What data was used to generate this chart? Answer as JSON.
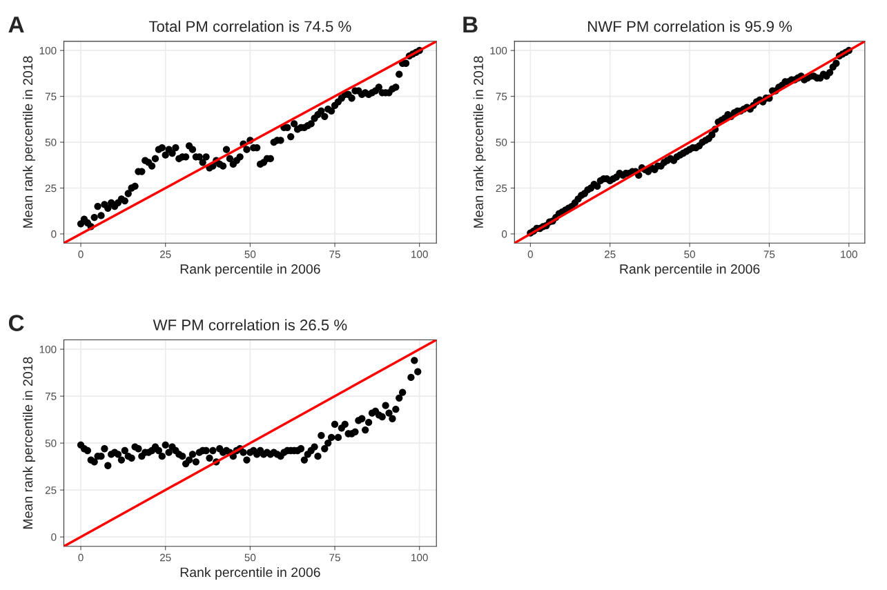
{
  "chart_data": [
    {
      "type": "scatter",
      "title": "Total PM correlation is 74.5 %",
      "xlabel": "Rank percentile in 2006",
      "ylabel": "Mean rank percentile in 2018",
      "annotations": [
        "A"
      ],
      "xlim": [
        -5,
        105
      ],
      "ylim": [
        -5,
        105
      ],
      "xticks": [
        0,
        25,
        50,
        75,
        100
      ],
      "yticks": [
        0,
        25,
        50,
        75,
        100
      ],
      "grid": true,
      "legend": false,
      "series": [
        {
          "marker": "circle",
          "color": "#000000",
          "x": [
            0,
            1,
            2,
            3,
            4,
            5,
            6,
            7,
            8,
            9,
            10,
            11,
            12,
            13,
            14,
            15,
            16,
            17,
            18,
            19,
            20,
            21,
            22,
            23,
            24,
            25,
            26,
            27,
            28,
            29,
            30,
            31,
            32,
            33,
            34,
            35,
            36,
            37,
            38,
            39,
            40,
            41,
            42,
            43,
            44,
            45,
            46,
            47,
            48,
            49,
            50,
            51,
            52,
            53,
            54,
            55,
            56,
            57,
            58,
            59,
            60,
            61,
            62,
            63,
            64,
            65,
            66,
            67,
            68,
            69,
            70,
            71,
            72,
            73,
            74,
            75,
            76,
            77,
            78,
            79,
            80,
            81,
            82,
            83,
            84,
            85,
            86,
            87,
            88,
            89,
            90,
            91,
            92,
            93,
            94,
            95,
            96,
            97,
            98,
            99,
            100
          ],
          "values": [
            5.5,
            8,
            6,
            4,
            9,
            15,
            10,
            16,
            14,
            17,
            15,
            17,
            19,
            18,
            22,
            25,
            26,
            34,
            34,
            40,
            39,
            37,
            41,
            46,
            47,
            43,
            46,
            44,
            47,
            41,
            42,
            42,
            48,
            46,
            42,
            42,
            39,
            42,
            36,
            37,
            40,
            38,
            37,
            46,
            41,
            38,
            40,
            42,
            49,
            46,
            51,
            47,
            47,
            38,
            39,
            41,
            41,
            50,
            51,
            51,
            58,
            58,
            53,
            60,
            57,
            58,
            58,
            59,
            60,
            63,
            65,
            67,
            64,
            68,
            67,
            70,
            72,
            74,
            76,
            76,
            74,
            78,
            78,
            76,
            77,
            76,
            77,
            78,
            80,
            77,
            77,
            77,
            79,
            80,
            87,
            93,
            93,
            97,
            98,
            99,
            100
          ]
        },
        {
          "type": "line",
          "color": "#ff0000",
          "x": [
            -5,
            105
          ],
          "values": [
            -5,
            105
          ]
        }
      ]
    },
    {
      "type": "scatter",
      "title": "NWF PM correlation is 95.9 %",
      "xlabel": "Rank percentile in 2006",
      "ylabel": "Mean rank percentile in 2018",
      "annotations": [
        "B"
      ],
      "xlim": [
        -5,
        105
      ],
      "ylim": [
        -5,
        105
      ],
      "xticks": [
        0,
        25,
        50,
        75,
        100
      ],
      "yticks": [
        0,
        25,
        50,
        75,
        100
      ],
      "grid": true,
      "legend": false,
      "series": [
        {
          "marker": "circle",
          "color": "#000000",
          "x": [
            0,
            1,
            2,
            3,
            4,
            5,
            6,
            7,
            8,
            9,
            10,
            11,
            12,
            13,
            14,
            15,
            16,
            17,
            18,
            19,
            20,
            21,
            22,
            23,
            24,
            25,
            26,
            27,
            28,
            29,
            30,
            31,
            32,
            33,
            34,
            35,
            36,
            37,
            38,
            39,
            40,
            41,
            42,
            43,
            44,
            45,
            46,
            47,
            48,
            49,
            50,
            51,
            52,
            53,
            54,
            55,
            56,
            57,
            58,
            59,
            60,
            61,
            62,
            63,
            64,
            65,
            66,
            67,
            68,
            69,
            70,
            71,
            72,
            73,
            74,
            75,
            76,
            77,
            78,
            79,
            80,
            81,
            82,
            83,
            84,
            85,
            86,
            87,
            88,
            89,
            90,
            91,
            92,
            93,
            94,
            95,
            96,
            97,
            98,
            99,
            100
          ],
          "values": [
            0.5,
            1.5,
            3,
            3,
            4,
            4.5,
            6.5,
            7,
            9,
            11,
            12,
            13,
            14,
            15,
            17,
            19,
            21,
            22,
            24,
            25,
            27,
            26,
            29,
            30,
            30,
            29,
            30,
            31,
            33,
            32,
            33,
            33,
            34,
            34,
            32,
            36,
            35,
            34,
            36,
            35,
            37,
            37,
            39,
            40,
            41,
            40,
            42,
            43,
            44,
            45,
            46,
            47,
            47,
            48,
            50,
            51,
            52,
            54,
            57,
            61,
            62,
            63,
            65,
            64,
            66,
            67,
            67,
            68,
            69,
            68,
            70,
            72,
            73,
            72,
            74,
            74,
            78,
            78,
            80,
            81,
            83,
            83,
            84,
            84,
            85,
            86,
            84,
            85,
            86,
            86,
            85,
            85,
            87,
            86,
            88,
            91,
            93,
            97,
            98,
            99,
            100
          ]
        },
        {
          "type": "line",
          "color": "#ff0000",
          "x": [
            -5,
            105
          ],
          "values": [
            -5,
            105
          ]
        }
      ]
    },
    {
      "type": "scatter",
      "title": "WF PM correlation is 26.5 %",
      "xlabel": "Rank percentile in 2006",
      "ylabel": "Mean rank percentile in 2018",
      "annotations": [
        "C"
      ],
      "xlim": [
        -5,
        105
      ],
      "ylim": [
        -5,
        105
      ],
      "xticks": [
        0,
        25,
        50,
        75,
        100
      ],
      "yticks": [
        0,
        25,
        50,
        75,
        100
      ],
      "grid": true,
      "legend": false,
      "series": [
        {
          "marker": "circle",
          "color": "#000000",
          "x": [
            0,
            1,
            2,
            3,
            4,
            5,
            6,
            7,
            8,
            9,
            10,
            11,
            12,
            13,
            14,
            15,
            16,
            17,
            18,
            19,
            20,
            21,
            22,
            23,
            24,
            25,
            26,
            27,
            28,
            29,
            30,
            31,
            32,
            33,
            34,
            35,
            36,
            37,
            38,
            39,
            40,
            41,
            42,
            43,
            44,
            45,
            46,
            47,
            48,
            49,
            50,
            51,
            52,
            53,
            54,
            55,
            56,
            57,
            58,
            59,
            60,
            61,
            62,
            63,
            64,
            65,
            66,
            67,
            68,
            69,
            70,
            71,
            72,
            73,
            74,
            75,
            76,
            77,
            78,
            79,
            80,
            81,
            82,
            83,
            84,
            85,
            86,
            87,
            88,
            89,
            90,
            91,
            92,
            93,
            94,
            95,
            97.5,
            98.5,
            99.5
          ],
          "values": [
            49,
            47,
            46,
            41,
            40,
            43,
            43,
            47,
            38,
            44,
            45,
            44,
            41,
            46,
            43,
            42,
            48,
            47,
            43,
            45,
            45,
            46,
            48,
            46,
            43,
            49,
            45,
            48,
            46,
            44,
            43,
            39,
            41,
            44,
            40,
            45,
            46,
            46,
            42,
            46,
            40,
            47,
            45,
            46,
            45,
            43,
            46,
            47,
            45,
            41,
            45,
            46,
            44,
            46,
            44,
            45,
            44,
            45,
            44,
            43,
            45,
            46,
            46,
            46,
            46,
            47,
            41,
            44,
            46,
            48,
            43,
            54,
            47,
            50,
            53,
            60,
            53,
            58,
            60,
            55,
            55,
            56,
            62,
            63,
            57,
            61,
            66,
            67,
            65,
            64,
            70,
            66,
            63,
            68,
            74,
            77,
            85,
            94,
            88
          ]
        },
        {
          "type": "line",
          "color": "#ff0000",
          "x": [
            -5,
            105
          ],
          "values": [
            -5,
            105
          ]
        }
      ]
    }
  ]
}
